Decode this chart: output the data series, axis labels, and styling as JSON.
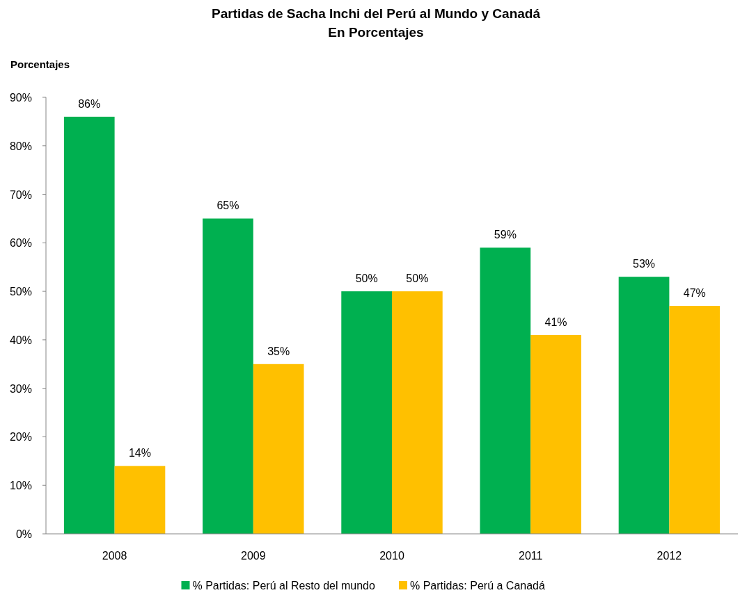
{
  "chart_data": {
    "type": "bar",
    "title": "Partidas de Sacha Inchi del Perú al Mundo y Canadá",
    "subtitle": "En Porcentajes",
    "ylabel": "Porcentajes",
    "categories": [
      "2008",
      "2009",
      "2010",
      "2011",
      "2012"
    ],
    "series": [
      {
        "name": "% Partidas: Perú al Resto del mundo",
        "color": "#00b050",
        "values": [
          86,
          65,
          50,
          59,
          53
        ],
        "value_labels": [
          "86%",
          "65%",
          "50%",
          "59%",
          "53%"
        ]
      },
      {
        "name": "% Partidas: Perú a Canadá",
        "color": "#ffc000",
        "values": [
          14,
          35,
          50,
          41,
          47
        ],
        "value_labels": [
          "14%",
          "35%",
          "50%",
          "41%",
          "47%"
        ]
      }
    ],
    "ylim": [
      0,
      90
    ],
    "yticks": [
      {
        "value": 0,
        "label": "0%"
      },
      {
        "value": 10,
        "label": "10%"
      },
      {
        "value": 20,
        "label": "20%"
      },
      {
        "value": 30,
        "label": "30%"
      },
      {
        "value": 40,
        "label": "40%"
      },
      {
        "value": 50,
        "label": "50%"
      },
      {
        "value": 60,
        "label": "60%"
      },
      {
        "value": 70,
        "label": "70%"
      },
      {
        "value": 80,
        "label": "80%"
      },
      {
        "value": 90,
        "label": "90%"
      }
    ],
    "grid": false,
    "legend": "bottom"
  }
}
